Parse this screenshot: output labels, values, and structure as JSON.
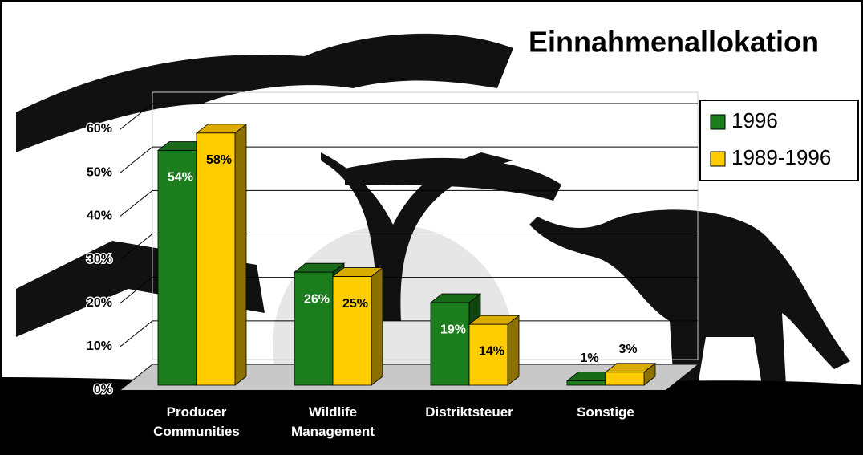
{
  "chart_data": {
    "type": "bar3d",
    "title": "Einnahmenallokation",
    "categories": [
      "Producer Communities",
      "Wildlife Management",
      "Distriktsteuer",
      "Sonstige"
    ],
    "series": [
      {
        "name": "1996",
        "color": "#1b7d1b",
        "values": [
          54,
          26,
          19,
          1
        ],
        "value_labels": [
          "54%",
          "26%",
          "19%",
          "1%"
        ]
      },
      {
        "name": "1989-1996",
        "color": "#ffcc00",
        "values": [
          58,
          25,
          14,
          3
        ],
        "value_labels": [
          "58%",
          "25%",
          "14%",
          "3%"
        ]
      }
    ],
    "ylim": [
      0,
      60
    ],
    "yticks": [
      {
        "value": 0,
        "label": "0%"
      },
      {
        "value": 10,
        "label": "10%"
      },
      {
        "value": 20,
        "label": "20%"
      },
      {
        "value": 30,
        "label": "30%"
      },
      {
        "value": 40,
        "label": "40%"
      },
      {
        "value": 50,
        "label": "50%"
      },
      {
        "value": 60,
        "label": "60%"
      }
    ],
    "grid": true,
    "legend": "right"
  }
}
